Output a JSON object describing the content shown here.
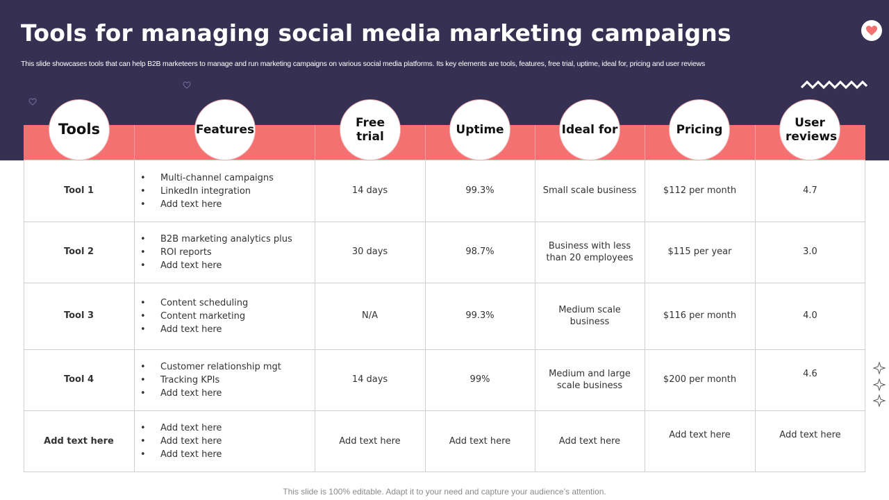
{
  "slide": {
    "title": "Tools for managing social media marketing campaigns",
    "subtitle": "This slide showcases tools that can help B2B marketeers to manage and run marketing campaigns on various social media platforms. Its key elements are tools, features, free trial, uptime, ideal for, pricing and user reviews",
    "footer": "This slide is 100% editable. Adapt it to your need and capture your audience’s attention."
  },
  "colors": {
    "header_band": "#363152",
    "accent": "#f37171",
    "text": "#333333"
  },
  "icons": [
    "heart-icon",
    "zigzag-icon",
    "small-heart-icon",
    "sparkle-icon"
  ],
  "table": {
    "columns": [
      "Tools",
      "Features",
      "Free trial",
      "Uptime",
      "Ideal for",
      "Pricing",
      "User reviews"
    ],
    "rows": [
      {
        "tool": "Tool 1",
        "features": [
          "Multi-channel campaigns",
          "LinkedIn integration",
          "Add text here"
        ],
        "free_trial": "14 days",
        "uptime": "99.3%",
        "ideal_for": "Small scale business",
        "pricing": "$112  per month",
        "reviews": "4.7"
      },
      {
        "tool": "Tool 2",
        "features": [
          "B2B marketing analytics plus",
          "ROI reports",
          "Add text here"
        ],
        "free_trial": "30 days",
        "uptime": "98.7%",
        "ideal_for": "Business with less than 20  employees",
        "pricing": "$115  per year",
        "reviews": "3.0"
      },
      {
        "tool": "Tool 3",
        "features": [
          "Content scheduling",
          "Content marketing",
          "Add text here"
        ],
        "free_trial": "N/A",
        "uptime": "99.3%",
        "ideal_for": "Medium scale business",
        "pricing": "$116  per month",
        "reviews": "4.0"
      },
      {
        "tool": "Tool 4",
        "features": [
          "Customer relationship mgt",
          "Tracking KPIs",
          "Add text here"
        ],
        "free_trial": "14 days",
        "uptime": "99%",
        "ideal_for": "Medium and large scale business",
        "pricing": "$200  per month",
        "reviews": "4.6"
      },
      {
        "tool": "Add text here",
        "features": [
          "Add text here",
          "Add text here",
          "Add text here"
        ],
        "free_trial": "Add text here",
        "uptime": "Add text here",
        "ideal_for": "Add text here",
        "pricing": "Add text here",
        "reviews": "Add text here"
      }
    ]
  }
}
